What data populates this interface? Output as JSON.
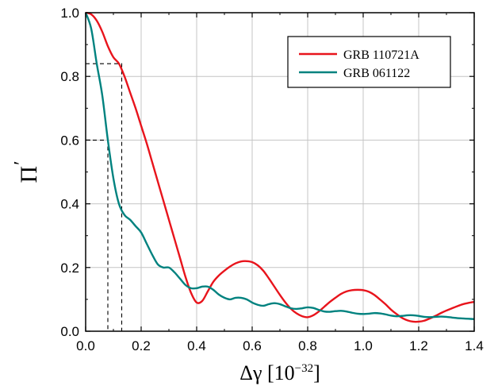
{
  "chart_data": {
    "type": "line",
    "xlabel": "Δγ [10",
    "xlabel_exp": "−32",
    "xlabel_suffix": "]",
    "ylabel": "Π",
    "ylabel_mark": "′",
    "xlim": [
      0.0,
      1.4
    ],
    "ylim": [
      0.0,
      1.0
    ],
    "grid": true,
    "legend_position": "top-right",
    "x_ticks": [
      "0.0",
      "0.2",
      "0.4",
      "0.6",
      "0.8",
      "1.0",
      "1.2",
      "1.4"
    ],
    "y_ticks": [
      "0.0",
      "0.2",
      "0.4",
      "0.6",
      "0.8",
      "1.0"
    ],
    "series": [
      {
        "name": "GRB 110721A",
        "color": "#e8141c",
        "x": [
          0.0,
          0.02,
          0.04,
          0.06,
          0.08,
          0.1,
          0.12,
          0.14,
          0.16,
          0.18,
          0.2,
          0.22,
          0.24,
          0.26,
          0.28,
          0.3,
          0.32,
          0.34,
          0.36,
          0.38,
          0.4,
          0.42,
          0.44,
          0.46,
          0.48,
          0.5,
          0.52,
          0.54,
          0.56,
          0.58,
          0.6,
          0.62,
          0.64,
          0.66,
          0.68,
          0.7,
          0.72,
          0.74,
          0.76,
          0.78,
          0.8,
          0.82,
          0.84,
          0.86,
          0.88,
          0.9,
          0.92,
          0.94,
          0.96,
          0.98,
          1.0,
          1.02,
          1.04,
          1.06,
          1.08,
          1.1,
          1.12,
          1.14,
          1.16,
          1.18,
          1.2,
          1.22,
          1.24,
          1.26,
          1.28,
          1.3,
          1.32,
          1.34,
          1.36,
          1.38,
          1.4
        ],
        "y": [
          1.0,
          0.995,
          0.975,
          0.94,
          0.895,
          0.86,
          0.84,
          0.8,
          0.75,
          0.7,
          0.645,
          0.59,
          0.53,
          0.47,
          0.41,
          0.35,
          0.29,
          0.23,
          0.17,
          0.12,
          0.09,
          0.095,
          0.125,
          0.155,
          0.175,
          0.19,
          0.203,
          0.213,
          0.219,
          0.22,
          0.217,
          0.207,
          0.19,
          0.166,
          0.14,
          0.114,
          0.09,
          0.07,
          0.056,
          0.047,
          0.044,
          0.05,
          0.062,
          0.077,
          0.092,
          0.105,
          0.117,
          0.125,
          0.129,
          0.13,
          0.129,
          0.124,
          0.114,
          0.1,
          0.085,
          0.068,
          0.054,
          0.042,
          0.034,
          0.03,
          0.03,
          0.033,
          0.04,
          0.048,
          0.057,
          0.065,
          0.072,
          0.079,
          0.085,
          0.089,
          0.092
        ]
      },
      {
        "name": "GRB 061122",
        "color": "#00827f",
        "x": [
          0.0,
          0.02,
          0.04,
          0.06,
          0.08,
          0.1,
          0.12,
          0.14,
          0.16,
          0.18,
          0.2,
          0.22,
          0.24,
          0.26,
          0.28,
          0.3,
          0.32,
          0.34,
          0.36,
          0.38,
          0.4,
          0.42,
          0.44,
          0.46,
          0.48,
          0.5,
          0.52,
          0.54,
          0.56,
          0.58,
          0.6,
          0.62,
          0.64,
          0.66,
          0.68,
          0.7,
          0.72,
          0.74,
          0.76,
          0.78,
          0.8,
          0.82,
          0.84,
          0.86,
          0.88,
          0.9,
          0.92,
          0.94,
          0.96,
          0.98,
          1.0,
          1.02,
          1.04,
          1.06,
          1.08,
          1.1,
          1.12,
          1.14,
          1.16,
          1.18,
          1.2,
          1.22,
          1.24,
          1.26,
          1.28,
          1.3,
          1.32,
          1.34,
          1.36,
          1.38,
          1.4
        ],
        "y": [
          1.0,
          0.95,
          0.84,
          0.74,
          0.6,
          0.48,
          0.4,
          0.365,
          0.35,
          0.33,
          0.31,
          0.275,
          0.24,
          0.21,
          0.2,
          0.2,
          0.185,
          0.165,
          0.145,
          0.135,
          0.135,
          0.14,
          0.14,
          0.13,
          0.115,
          0.105,
          0.1,
          0.105,
          0.105,
          0.1,
          0.09,
          0.083,
          0.08,
          0.085,
          0.088,
          0.085,
          0.078,
          0.072,
          0.07,
          0.072,
          0.075,
          0.073,
          0.067,
          0.062,
          0.061,
          0.063,
          0.064,
          0.062,
          0.058,
          0.055,
          0.054,
          0.055,
          0.057,
          0.056,
          0.053,
          0.049,
          0.047,
          0.048,
          0.05,
          0.05,
          0.048,
          0.045,
          0.044,
          0.045,
          0.046,
          0.045,
          0.043,
          0.041,
          0.04,
          0.039,
          0.038
        ]
      }
    ],
    "reference_lines": [
      {
        "x": 0.08,
        "y": 0.6
      },
      {
        "x": 0.13,
        "y": 0.84
      }
    ]
  }
}
